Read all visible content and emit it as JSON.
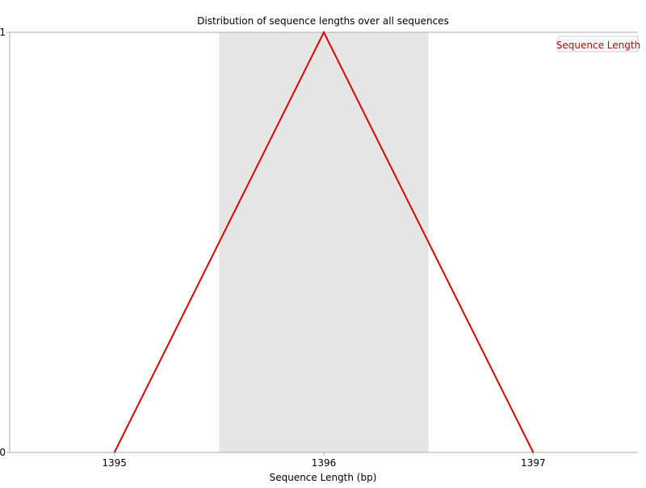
{
  "chart_data": {
    "type": "line",
    "title": "Distribution of sequence lengths over all sequences",
    "xlabel": "Sequence Length (bp)",
    "ylabel": "",
    "x": [
      1395,
      1396,
      1397
    ],
    "x_tick_labels": [
      "1395",
      "1396",
      "1397"
    ],
    "xlim": [
      1394.5,
      1397.5
    ],
    "ylim": [
      0,
      1
    ],
    "y_tick_labels": [
      "0",
      "1"
    ],
    "series": [
      {
        "name": "Sequence Length",
        "values": [
          0,
          1,
          0
        ],
        "color": "#e00000"
      }
    ],
    "highlight_band": {
      "x_from": 1395.5,
      "x_to": 1396.5,
      "color": "#e5e5e5"
    },
    "legend": "top-right",
    "grid": false
  }
}
